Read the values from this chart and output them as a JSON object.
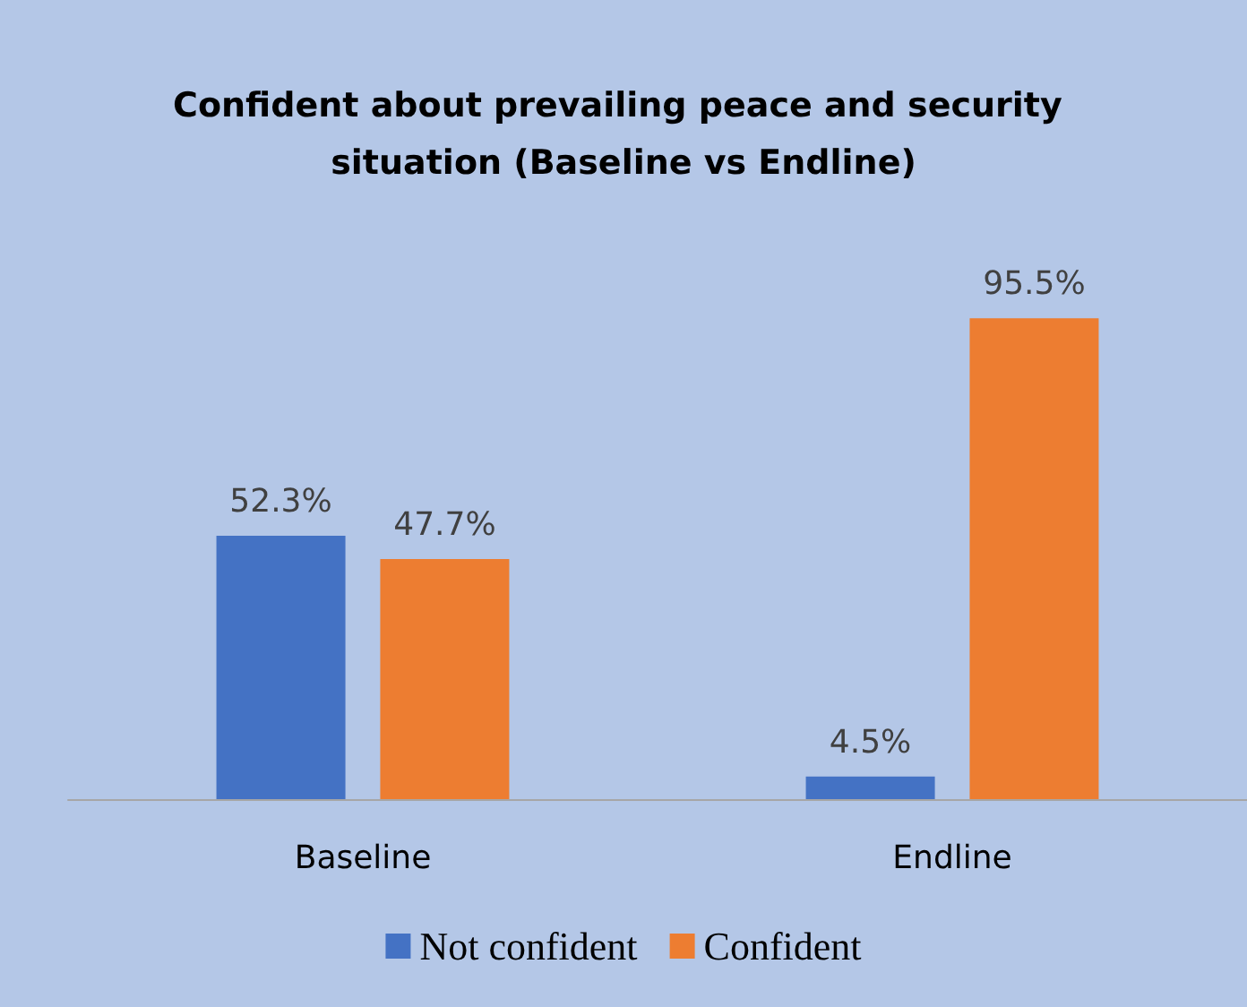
{
  "chart_data": {
    "type": "bar",
    "title": "Confident about prevailing peace and security situation (Baseline vs Endline)",
    "categories": [
      "Baseline",
      "Endline"
    ],
    "series": [
      {
        "name": "Not confident",
        "color": "#4472c4",
        "values": [
          52.3,
          4.5
        ],
        "value_labels": [
          "52.3%",
          "4.5%"
        ]
      },
      {
        "name": "Confident",
        "color": "#ed7d31",
        "values": [
          47.7,
          95.5
        ],
        "value_labels": [
          "47.7%",
          "95.5%"
        ]
      }
    ],
    "legend": "bottom"
  }
}
